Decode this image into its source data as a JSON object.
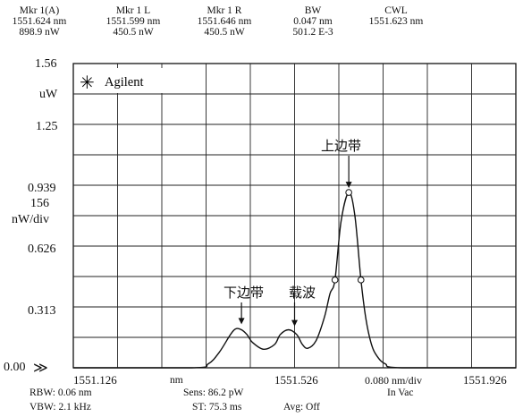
{
  "header": {
    "columns": [
      {
        "title": "Mkr 1(A)",
        "line1": "1551.624 nm",
        "line2": "898.9 nW"
      },
      {
        "title": "Mkr 1 L",
        "line1": "1551.599 nm",
        "line2": "450.5 nW"
      },
      {
        "title": "Mkr 1 R",
        "line1": "1551.646 nm",
        "line2": "450.5 nW"
      },
      {
        "title": "BW",
        "line1": "0.047 nm",
        "line2": "501.2 E-3"
      },
      {
        "title": "CWL",
        "line1": "1551.623 nm",
        "line2": ""
      }
    ]
  },
  "y_axis": {
    "top_value": "1.56",
    "top_unit": "uW",
    "ticks": [
      "1.25",
      "0.939",
      "0.626",
      "0.313",
      "0.00"
    ],
    "scale_value": "156",
    "scale_unit": "nW/div",
    "ref_marker": "≫"
  },
  "brand": {
    "logo_glyph": "✳",
    "name": "Agilent"
  },
  "x_axis": {
    "start": "1551.126",
    "unit": "nm",
    "center": "1551.526",
    "per_div": "0.080 nm/div",
    "end": "1551.926",
    "medium": "In Vac"
  },
  "settings": {
    "rbw": "RBW:  0.06 nm",
    "vbw": "VBW:  2.1 kHz",
    "sens": "Sens:  86.2 pW",
    "st": "ST:  75.3 ms",
    "avg": "Avg:  Off"
  },
  "chart_data": {
    "type": "line",
    "xlim": [
      1551.126,
      1551.926
    ],
    "ylim": [
      0,
      1.56
    ],
    "x_unit": "nm",
    "y_unit": "uW",
    "grid": true,
    "annotations": [
      {
        "text": "下边带",
        "x": 1551.43,
        "y": 0.2
      },
      {
        "text": "载波",
        "x": 1551.526,
        "y": 0.19
      },
      {
        "text": "上边带",
        "x": 1551.624,
        "y": 0.899
      }
    ],
    "markers": [
      {
        "x": 1551.624,
        "y": 0.899
      },
      {
        "x": 1551.599,
        "y": 0.4505
      },
      {
        "x": 1551.646,
        "y": 0.4505
      }
    ],
    "series": [
      {
        "x": [
          1551.126,
          1551.34,
          1551.37,
          1551.39,
          1551.41,
          1551.42,
          1551.43,
          1551.44,
          1551.45,
          1551.47,
          1551.49,
          1551.5,
          1551.515,
          1551.53,
          1551.54,
          1551.55,
          1551.565,
          1551.58,
          1551.59,
          1551.599,
          1551.61,
          1551.624,
          1551.635,
          1551.646,
          1551.655,
          1551.665,
          1551.675,
          1551.69,
          1551.72,
          1551.926
        ],
        "y": [
          0,
          0,
          0.02,
          0.08,
          0.17,
          0.2,
          0.195,
          0.17,
          0.13,
          0.095,
          0.12,
          0.17,
          0.195,
          0.17,
          0.12,
          0.1,
          0.14,
          0.26,
          0.38,
          0.4505,
          0.75,
          0.899,
          0.78,
          0.4505,
          0.25,
          0.12,
          0.06,
          0.02,
          0,
          0
        ]
      }
    ]
  }
}
